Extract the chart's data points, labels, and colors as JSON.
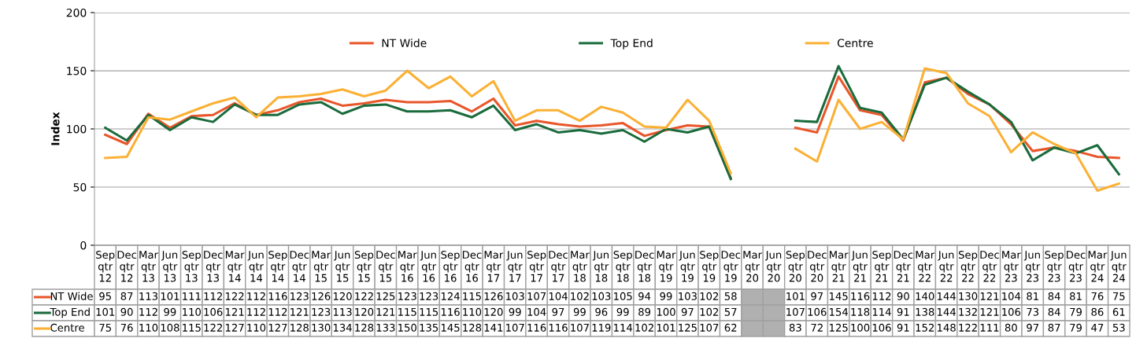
{
  "chart_data": {
    "type": "line",
    "ylabel": "Index",
    "categories": [
      "Sep\nqtr\n12",
      "Dec\nqtr\n12",
      "Mar\nqtr\n13",
      "Jun\nqtr\n13",
      "Sep\nqtr\n13",
      "Dec\nqtr\n13",
      "Mar\nqtr\n14",
      "Jun\nqtr\n14",
      "Sep\nqtr\n14",
      "Dec\nqtr\n14",
      "Mar\nqtr\n15",
      "Jun\nqtr\n15",
      "Sep\nqtr\n15",
      "Dec\nqtr\n15",
      "Mar\nqtr\n16",
      "Jun\nqtr\n16",
      "Sep\nqtr\n16",
      "Dec\nqtr\n16",
      "Mar\nqtr\n17",
      "Jun\nqtr\n17",
      "Sep\nqtr\n17",
      "Dec\nqtr\n17",
      "Mar\nqtr\n18",
      "Jun\nqtr\n18",
      "Sep\nqtr\n18",
      "Dec\nqtr\n18",
      "Mar\nqtr\n19",
      "Jun\nqtr\n19",
      "Sep\nqtr\n19",
      "Dec\nqtr\n19",
      "Mar\nqtr\n20",
      "Jun\nqtr\n20",
      "Sep\nqtr\n20",
      "Dec\nqtr\n20",
      "Mar\nqtr\n21",
      "Jun\nqtr\n21",
      "Sep\nqtr\n21",
      "Dec\nqtr\n21",
      "Mar\nqtr\n22",
      "Jun\nqtr\n22",
      "Sep\nqtr\n22",
      "Dec\nqtr\n22",
      "Mar\nqtr\n23",
      "Jun\nqtr\n23",
      "Sep\nqtr\n23",
      "Dec\nqtr\n23",
      "Mar\nqtr\n24",
      "Jun\nqtr\n24"
    ],
    "series": [
      {
        "name": "NT Wide",
        "color": "#e8562a",
        "values": [
          95,
          87,
          113,
          101,
          111,
          112,
          122,
          112,
          116,
          123,
          126,
          120,
          122,
          125,
          123,
          123,
          124,
          115,
          126,
          103,
          107,
          104,
          102,
          103,
          105,
          94,
          99,
          103,
          102,
          58,
          null,
          null,
          101,
          97,
          145,
          116,
          112,
          90,
          140,
          144,
          130,
          121,
          104,
          81,
          84,
          81,
          76,
          75
        ]
      },
      {
        "name": "Top End",
        "color": "#1a6b3c",
        "values": [
          101,
          90,
          112,
          99,
          110,
          106,
          121,
          112,
          112,
          121,
          123,
          113,
          120,
          121,
          115,
          115,
          116,
          110,
          120,
          99,
          104,
          97,
          99,
          96,
          99,
          89,
          100,
          97,
          102,
          57,
          null,
          null,
          107,
          106,
          154,
          118,
          114,
          91,
          138,
          144,
          132,
          121,
          106,
          73,
          84,
          79,
          86,
          61
        ]
      },
      {
        "name": "Centre",
        "color": "#fbb034",
        "values": [
          75,
          76,
          110,
          108,
          115,
          122,
          127,
          110,
          127,
          128,
          130,
          134,
          128,
          133,
          150,
          135,
          145,
          128,
          141,
          107,
          116,
          116,
          107,
          119,
          114,
          102,
          101,
          125,
          107,
          62,
          null,
          null,
          83,
          72,
          125,
          100,
          106,
          91,
          152,
          148,
          122,
          111,
          80,
          97,
          87,
          79,
          47,
          53
        ]
      }
    ],
    "ylim": [
      0,
      200
    ],
    "yticks": [
      0,
      50,
      100,
      150,
      200
    ],
    "grid": "y",
    "legend": "top",
    "data_labels": true
  }
}
